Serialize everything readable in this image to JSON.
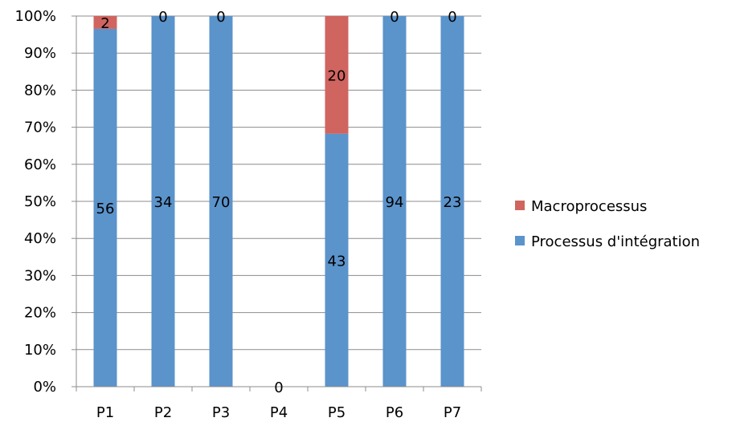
{
  "chart_data": {
    "type": "bar",
    "stacked": "percent",
    "categories": [
      "P1",
      "P2",
      "P3",
      "P4",
      "P5",
      "P6",
      "P7"
    ],
    "series": [
      {
        "name": "Processus d'intégration",
        "color": "#5b93cb",
        "values": [
          56,
          34,
          70,
          0,
          43,
          94,
          23
        ]
      },
      {
        "name": "Macroprocessus",
        "color": "#d0645f",
        "values": [
          2,
          0,
          0,
          0,
          20,
          0,
          0
        ]
      }
    ],
    "ylim": [
      0,
      100
    ],
    "yticks": [
      "0%",
      "10%",
      "20%",
      "30%",
      "40%",
      "50%",
      "60%",
      "70%",
      "80%",
      "90%",
      "100%"
    ],
    "grid": true,
    "legend_position": "right",
    "empty_category_label": "0"
  }
}
